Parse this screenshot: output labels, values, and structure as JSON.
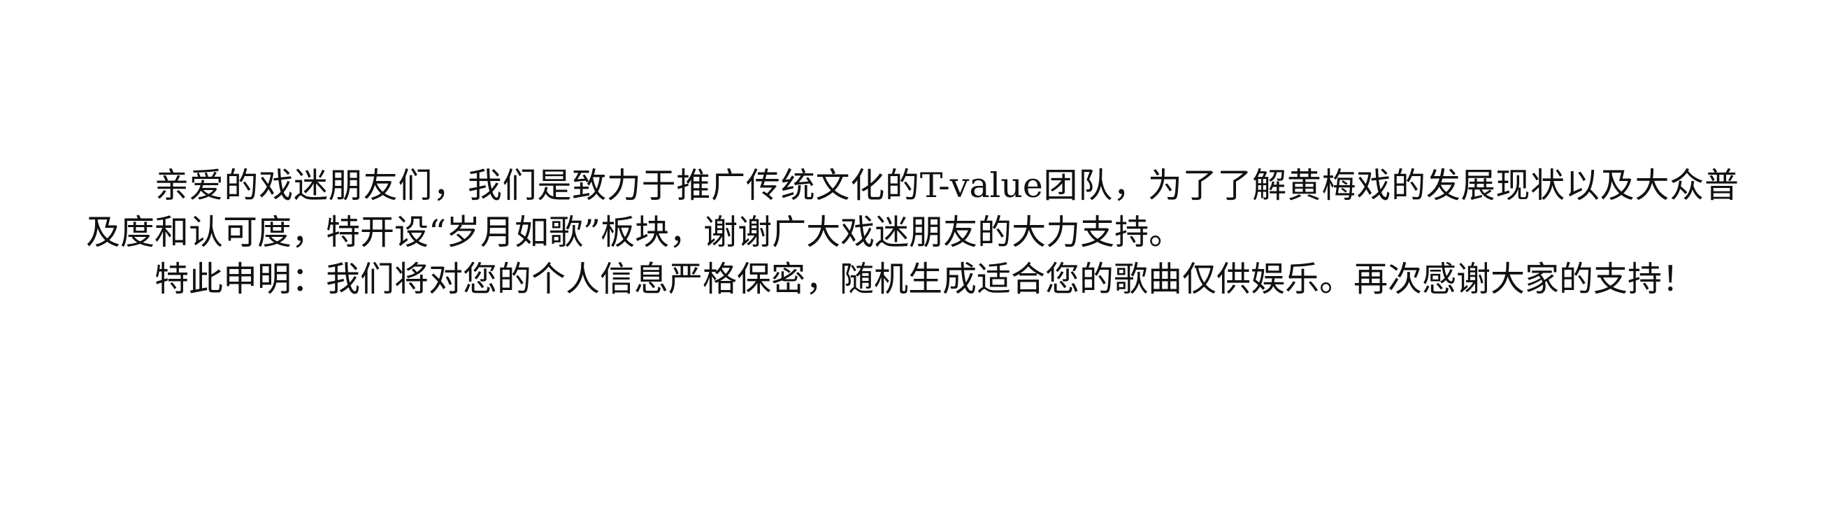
{
  "document": {
    "paragraphs": [
      "亲爱的戏迷朋友们，我们是致力于推广传统文化的T-value团队，为了了解黄梅戏的发展现状以及大众普及度和认可度，特开设“岁月如歌”板块，谢谢广大戏迷朋友的大力支持。",
      "特此申明：我们将对您的个人信息严格保密，随机生成适合您的歌曲仅供娱乐。再次感谢大家的支持！"
    ]
  }
}
